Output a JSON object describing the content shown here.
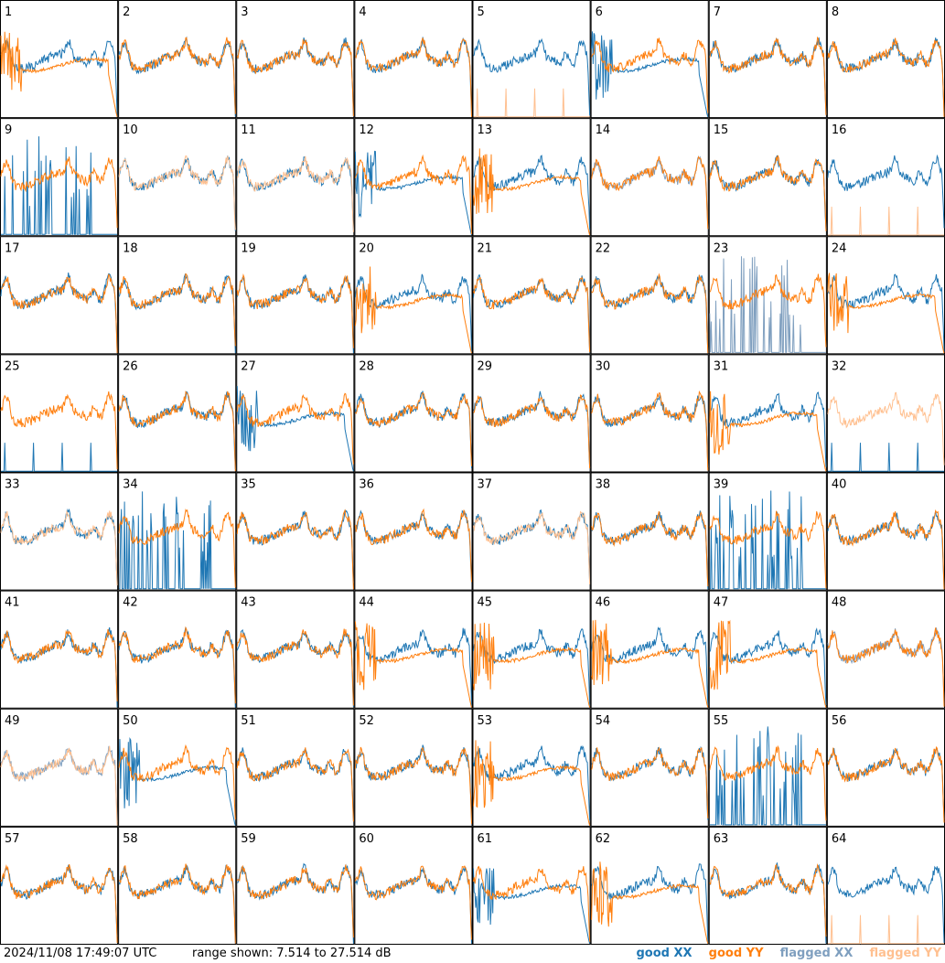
{
  "chart_data": {
    "type": "line",
    "title": "",
    "grid_rows": 8,
    "grid_cols": 8,
    "panel_labels": [
      "1",
      "2",
      "3",
      "4",
      "5",
      "6",
      "7",
      "8",
      "9",
      "10",
      "11",
      "12",
      "13",
      "14",
      "15",
      "16",
      "17",
      "18",
      "19",
      "20",
      "21",
      "22",
      "23",
      "24",
      "25",
      "26",
      "27",
      "28",
      "29",
      "30",
      "31",
      "32",
      "33",
      "34",
      "35",
      "36",
      "37",
      "38",
      "39",
      "40",
      "41",
      "42",
      "43",
      "44",
      "45",
      "46",
      "47",
      "48",
      "49",
      "50",
      "51",
      "52",
      "53",
      "54",
      "55",
      "56",
      "57",
      "58",
      "59",
      "60",
      "61",
      "62",
      "63",
      "64"
    ],
    "ylim_db": [
      7.514,
      27.514
    ],
    "series": [
      {
        "name": "good XX",
        "color": "#1f77b4"
      },
      {
        "name": "good YY",
        "color": "#ff7f0e"
      },
      {
        "name": "flagged XX",
        "color": "#7f9fbf"
      },
      {
        "name": "flagged YY",
        "color": "#ffc090"
      }
    ],
    "panels_flagged_xx": [
      "14",
      "23",
      "48",
      "49"
    ],
    "panels_flagged_yy": [
      "5",
      "10",
      "11",
      "16",
      "32",
      "33",
      "37",
      "49",
      "64"
    ],
    "panels_xx_low": [
      "6",
      "12",
      "27",
      "50",
      "61"
    ],
    "panels_yy_low": [
      "1",
      "13",
      "20",
      "24",
      "31",
      "44",
      "45",
      "46",
      "47",
      "53",
      "62"
    ],
    "panels_xx_spiky": [
      "9",
      "23",
      "34",
      "39",
      "55"
    ],
    "panels_xx_absent": [
      "9",
      "25",
      "32",
      "34"
    ],
    "panels_yy_absent": [
      "5",
      "16",
      "64"
    ]
  },
  "footer": {
    "timestamp": "2024/11/08 17:49:07 UTC",
    "range_text": "range shown: 7.514 to 27.514 dB",
    "legend": [
      {
        "label": "good XX",
        "color": "#1f77b4"
      },
      {
        "label": "good YY",
        "color": "#ff7f0e"
      },
      {
        "label": "flagged XX",
        "color": "#7f9fbf"
      },
      {
        "label": "flagged YY",
        "color": "#ffc090"
      }
    ]
  }
}
